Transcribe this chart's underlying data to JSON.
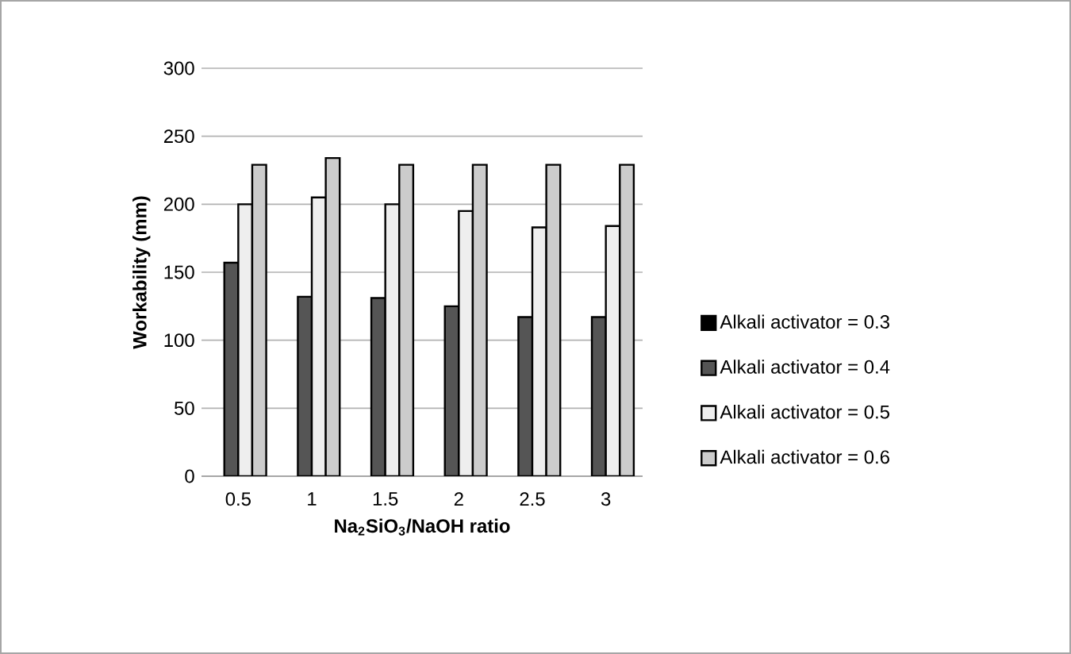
{
  "chart_data": {
    "type": "bar",
    "xlabel": "Na$_{2}$SiO$_{3}$/NaOH ratio",
    "ylabel": "Workability (mm)",
    "categories": [
      "0.5",
      "1",
      "1.5",
      "2",
      "2.5",
      "3"
    ],
    "series": [
      {
        "name": "Alkali activator = 0.3",
        "color": "#000000",
        "values": [
          null,
          null,
          null,
          null,
          null,
          null
        ]
      },
      {
        "name": "Alkali activator = 0.4",
        "color": "#555555",
        "values": [
          157,
          132,
          131,
          125,
          117,
          117
        ]
      },
      {
        "name": "Alkali activator = 0.5",
        "color": "#eeeeee",
        "values": [
          200,
          205,
          200,
          195,
          183,
          184
        ]
      },
      {
        "name": "Alkali activator = 0.6",
        "color": "#cccccc",
        "values": [
          229,
          234,
          229,
          229,
          229,
          229
        ]
      }
    ],
    "ylim": [
      0,
      300
    ],
    "yticks": [
      0,
      50,
      100,
      150,
      200,
      250,
      300
    ],
    "grid": "y",
    "legend": "right"
  }
}
